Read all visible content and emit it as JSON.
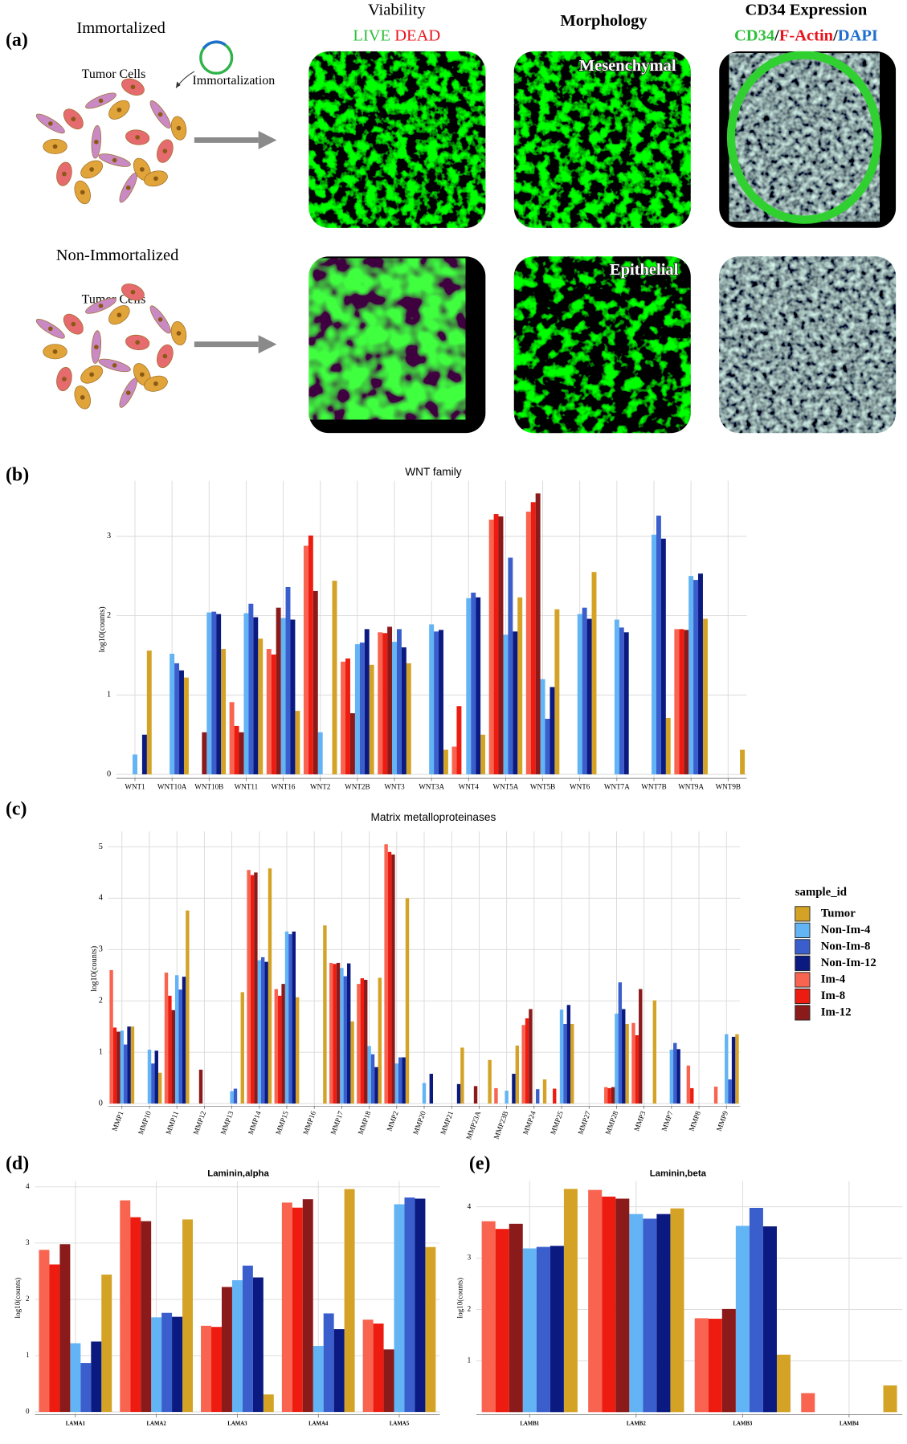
{
  "panel_a": {
    "label": "(a)",
    "immortalized": "Immortalized",
    "tumor_cells_1": "Tumor Cells",
    "immortalization": "Immortalization",
    "non_immortalized": "Non-Immortalized",
    "tumor_cells_2": "Tumor Cells",
    "viability": "Viability",
    "live": "LIVE",
    "dead": "DEAD",
    "morphology": "Morphology",
    "mesenchymal": "Mesenchymal",
    "epithelial": "Epithelial",
    "cd34_expression": "CD34 Expression",
    "cd34": "CD34",
    "slash_1": "/",
    "f_actin": "F-Actin",
    "slash_2": "/",
    "dapi": "DAPI"
  },
  "chart_data": [
    {
      "type": "bar",
      "panel": "(b)",
      "title": "WNT family",
      "y_label": "log10(counts)",
      "grid": true,
      "categories": [
        "WNT1",
        "WNT10A",
        "WNT10B",
        "WNT11",
        "WNT16",
        "WNT2",
        "WNT2B",
        "WNT3",
        "WNT3A",
        "WNT4",
        "WNT5A",
        "WNT5B",
        "WNT6",
        "WNT7A",
        "WNT7B",
        "WNT9A",
        "WNT9B"
      ],
      "ylim": [
        -0.05,
        3.7
      ],
      "yticks": [
        0,
        1,
        2,
        3
      ],
      "series": [
        {
          "color": "#d4a326",
          "values": [
            1.56,
            1.22,
            1.58,
            1.71,
            0.8,
            2.44,
            1.38,
            1.4,
            0.31,
            0.5,
            2.23,
            2.08,
            2.55,
            null,
            0.71,
            1.96,
            0.31
          ]
        },
        {
          "color": "#62b4f5",
          "values": [
            0.25,
            1.52,
            2.04,
            2.03,
            1.97,
            0.53,
            1.64,
            1.67,
            1.89,
            2.22,
            1.76,
            1.2,
            2.02,
            1.95,
            3.02,
            2.5,
            null
          ]
        },
        {
          "color": "#3a5fcd",
          "values": [
            null,
            1.4,
            2.05,
            2.15,
            2.36,
            null,
            1.66,
            1.83,
            1.8,
            2.29,
            2.73,
            0.7,
            2.1,
            1.85,
            3.26,
            2.45,
            null
          ]
        },
        {
          "color": "#0a1a80",
          "values": [
            0.5,
            1.31,
            2.02,
            1.98,
            1.95,
            null,
            1.83,
            1.6,
            1.82,
            2.23,
            1.8,
            1.1,
            1.96,
            1.79,
            2.97,
            2.53,
            null
          ]
        },
        {
          "color": "#f86450",
          "values": [
            null,
            null,
            null,
            0.91,
            1.58,
            2.88,
            1.42,
            1.79,
            null,
            0.35,
            3.21,
            3.31,
            null,
            null,
            null,
            1.83,
            null
          ]
        },
        {
          "color": "#ee1c10",
          "values": [
            null,
            null,
            null,
            0.61,
            1.51,
            3.01,
            1.46,
            1.78,
            null,
            0.86,
            3.28,
            3.43,
            null,
            null,
            null,
            1.83,
            null
          ]
        },
        {
          "color": "#8b1a1a",
          "values": [
            null,
            null,
            0.53,
            0.53,
            2.1,
            2.31,
            0.77,
            1.86,
            null,
            null,
            3.25,
            3.54,
            null,
            null,
            null,
            1.82,
            null
          ]
        }
      ]
    },
    {
      "type": "bar",
      "panel": "(c)",
      "title": "Matrix  metalloproteinases",
      "y_label": "log10(counts)",
      "grid": true,
      "legend": "right",
      "legend_title": "sample_id",
      "categories": [
        "MMP1",
        "MMP10",
        "MMP11",
        "MMP12",
        "MMP13",
        "MMP14",
        "MMP15",
        "MMP16",
        "MMP17",
        "MMP18",
        "MMP2",
        "MMP20",
        "MMP21",
        "MMP23A",
        "MMP23B",
        "MMP24",
        "MMP25",
        "MMP27",
        "MMP28",
        "MMP3",
        "MMP7",
        "MMP8",
        "MMP9"
      ],
      "ylim": [
        -0.05,
        5.3
      ],
      "yticks": [
        0,
        1,
        2,
        3,
        4,
        5
      ],
      "series": [
        {
          "name": "Tumor",
          "color": "#d4a326",
          "values": [
            1.5,
            0.6,
            3.76,
            null,
            2.17,
            4.58,
            2.07,
            3.47,
            1.6,
            2.45,
            4.0,
            null,
            1.09,
            0.85,
            1.13,
            0.47,
            1.55,
            null,
            1.55,
            2.01,
            null,
            null,
            1.35
          ]
        },
        {
          "name": "Non-Im-4",
          "color": "#62b4f5",
          "values": [
            1.42,
            1.05,
            2.5,
            null,
            0.24,
            2.79,
            3.35,
            null,
            2.64,
            1.12,
            0.78,
            0.4,
            null,
            null,
            0.25,
            null,
            1.83,
            null,
            1.75,
            null,
            1.05,
            null,
            1.35
          ]
        },
        {
          "name": "Non-Im-8",
          "color": "#3a5fcd",
          "values": [
            1.15,
            0.78,
            2.22,
            null,
            0.29,
            2.85,
            3.3,
            null,
            2.48,
            0.96,
            0.9,
            null,
            null,
            null,
            null,
            0.28,
            1.55,
            null,
            2.36,
            null,
            1.18,
            null,
            0.47
          ]
        },
        {
          "name": "Non-Im-12",
          "color": "#0a1a80",
          "values": [
            1.5,
            1.03,
            2.47,
            null,
            null,
            2.76,
            3.35,
            null,
            2.73,
            0.71,
            0.9,
            0.58,
            0.38,
            null,
            0.58,
            null,
            1.92,
            null,
            1.84,
            null,
            1.06,
            null,
            1.3
          ]
        },
        {
          "name": "Im-4",
          "color": "#f86450",
          "values": [
            2.6,
            null,
            2.55,
            null,
            null,
            4.55,
            2.23,
            null,
            2.74,
            2.33,
            5.05,
            null,
            null,
            null,
            0.3,
            1.53,
            null,
            null,
            0.32,
            1.57,
            null,
            0.74,
            0.33
          ]
        },
        {
          "name": "Im-8",
          "color": "#ee1c10",
          "values": [
            1.48,
            null,
            2.1,
            null,
            null,
            4.45,
            2.1,
            null,
            2.72,
            2.44,
            4.9,
            null,
            null,
            null,
            null,
            1.66,
            0.29,
            null,
            0.3,
            1.33,
            null,
            0.3,
            null
          ]
        },
        {
          "name": "Im-12",
          "color": "#8b1a1a",
          "values": [
            1.4,
            null,
            1.82,
            0.66,
            null,
            4.5,
            2.33,
            null,
            2.74,
            2.41,
            4.85,
            null,
            null,
            0.34,
            null,
            1.84,
            null,
            null,
            0.32,
            2.23,
            null,
            null,
            null
          ]
        }
      ]
    },
    {
      "type": "bar",
      "panel": "(d)",
      "title": "Laminin,alpha",
      "y_label": "log10(counts)",
      "grid": true,
      "categories": [
        "LAMA1",
        "LAMA2",
        "LAMA3",
        "LAMA4",
        "LAMA5"
      ],
      "ylim": [
        -0.05,
        4.1
      ],
      "yticks": [
        0,
        1,
        2,
        3,
        4
      ],
      "series": [
        {
          "color": "#d4a326",
          "values": [
            2.44,
            3.42,
            0.31,
            3.96,
            2.93
          ]
        },
        {
          "color": "#62b4f5",
          "values": [
            1.22,
            1.68,
            2.34,
            1.17,
            3.69
          ]
        },
        {
          "color": "#3a5fcd",
          "values": [
            0.87,
            1.76,
            2.6,
            1.75,
            3.81
          ]
        },
        {
          "color": "#0a1a80",
          "values": [
            1.25,
            1.69,
            2.39,
            1.47,
            3.79
          ]
        },
        {
          "color": "#f86450",
          "values": [
            2.88,
            3.76,
            1.53,
            3.72,
            1.64
          ]
        },
        {
          "color": "#ee1c10",
          "values": [
            2.62,
            3.46,
            1.51,
            3.63,
            1.57
          ]
        },
        {
          "color": "#8b1a1a",
          "values": [
            2.98,
            3.39,
            2.22,
            3.78,
            1.11
          ]
        }
      ]
    },
    {
      "type": "bar",
      "panel": "(e)",
      "title": "Laminin,beta",
      "y_label": "log10(counts)",
      "grid": true,
      "categories": [
        "LAMB1",
        "LAMB2",
        "LAMB3",
        "LAMB4"
      ],
      "ylim": [
        -0.05,
        4.5
      ],
      "yticks": [
        1,
        2,
        3,
        4
      ],
      "series": [
        {
          "color": "#d4a326",
          "values": [
            4.35,
            3.97,
            1.12,
            0.52
          ]
        },
        {
          "color": "#62b4f5",
          "values": [
            3.19,
            3.86,
            3.63,
            null
          ]
        },
        {
          "color": "#3a5fcd",
          "values": [
            3.22,
            3.77,
            3.98,
            null
          ]
        },
        {
          "color": "#0a1a80",
          "values": [
            3.24,
            3.86,
            3.62,
            null
          ]
        },
        {
          "color": "#f86450",
          "values": [
            3.72,
            4.33,
            1.83,
            0.37
          ]
        },
        {
          "color": "#ee1c10",
          "values": [
            3.57,
            4.2,
            1.82,
            null
          ]
        },
        {
          "color": "#8b1a1a",
          "values": [
            3.67,
            4.16,
            2.01,
            null
          ]
        }
      ]
    }
  ]
}
